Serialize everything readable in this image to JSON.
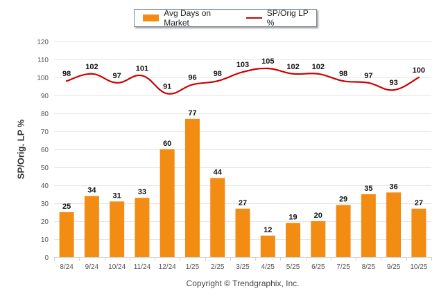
{
  "chart_data": {
    "type": "bar",
    "title": "",
    "xlabel": "",
    "ylabel": "SP/Orig. LP %",
    "ylim": [
      0,
      120
    ],
    "yticks": [
      0,
      10,
      20,
      30,
      40,
      50,
      60,
      70,
      80,
      90,
      100,
      110,
      120
    ],
    "grid": true,
    "legend_position": "top-center",
    "categories": [
      "8/24",
      "9/24",
      "10/24",
      "11/24",
      "12/24",
      "1/25",
      "2/25",
      "3/25",
      "4/25",
      "5/25",
      "6/25",
      "7/25",
      "8/25",
      "9/25",
      "10/25"
    ],
    "series": [
      {
        "name": "Avg Days on Market",
        "type": "bar",
        "color": "#f28c12",
        "values": [
          25,
          34,
          31,
          33,
          60,
          77,
          44,
          27,
          12,
          19,
          20,
          29,
          35,
          36,
          27
        ]
      },
      {
        "name": "SP/Orig LP %",
        "type": "line",
        "color": "#cc0000",
        "values": [
          98,
          102,
          97,
          101,
          91,
          96,
          98,
          103,
          105,
          102,
          102,
          98,
          97,
          93,
          100
        ]
      }
    ],
    "footer": "Copyright © Trendgraphix, Inc."
  }
}
